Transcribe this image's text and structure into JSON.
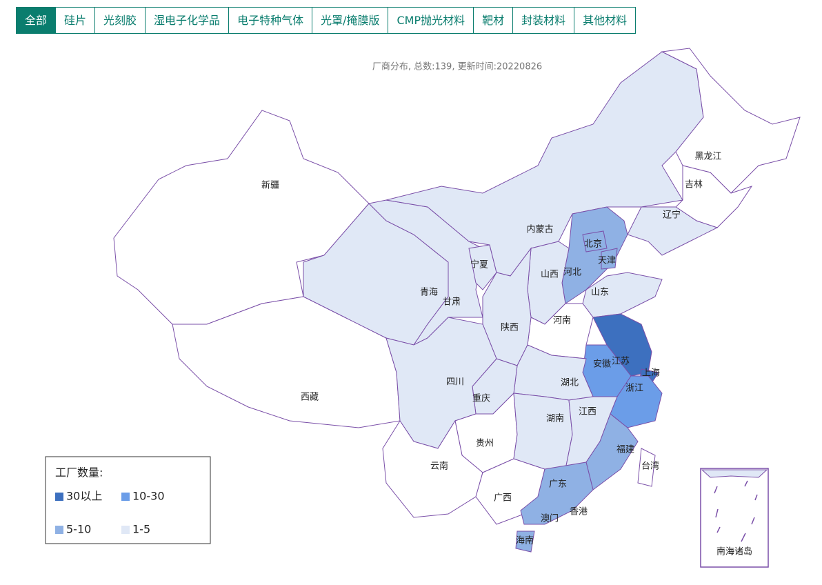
{
  "tabs": [
    "全部",
    "硅片",
    "光刻胶",
    "湿电子化学品",
    "电子特种气体",
    "光罩/掩膜版",
    "CMP抛光材料",
    "靶材",
    "封装材料",
    "其他材料"
  ],
  "map": {
    "subtitle": "厂商分布, 总数:139, 更新时间:20220826",
    "legend": {
      "title": "工厂数量:",
      "items": [
        {
          "label": "30以上",
          "color": "#3d70bf"
        },
        {
          "label": "10-30",
          "color": "#6b9de8"
        },
        {
          "label": "5-10",
          "color": "#8fb1e4"
        },
        {
          "label": "1-5",
          "color": "#e0e8f6"
        }
      ]
    },
    "provinces": [
      {
        "name": "新疆",
        "color": "#ffffff"
      },
      {
        "name": "西藏",
        "color": "#ffffff"
      },
      {
        "name": "青海",
        "color": "#e0e8f6"
      },
      {
        "name": "甘肃",
        "color": "#e0e8f6"
      },
      {
        "name": "宁夏",
        "color": "#e0e8f6"
      },
      {
        "name": "内蒙古",
        "color": "#e0e8f6"
      },
      {
        "name": "黑龙江",
        "color": "#ffffff"
      },
      {
        "name": "吉林",
        "color": "#ffffff"
      },
      {
        "name": "辽宁",
        "color": "#e0e8f6"
      },
      {
        "name": "河北",
        "color": "#8fb1e4"
      },
      {
        "name": "北京",
        "color": "#8fb1e4"
      },
      {
        "name": "天津",
        "color": "#8fb1e4"
      },
      {
        "name": "山西",
        "color": "#e0e8f6"
      },
      {
        "name": "山东",
        "color": "#e0e8f6"
      },
      {
        "name": "河南",
        "color": "#ffffff"
      },
      {
        "name": "陕西",
        "color": "#e0e8f6"
      },
      {
        "name": "江苏",
        "color": "#3d70bf"
      },
      {
        "name": "安徽",
        "color": "#6b9de8"
      },
      {
        "name": "上海",
        "color": "#3d70bf"
      },
      {
        "name": "浙江",
        "color": "#6b9de8"
      },
      {
        "name": "湖北",
        "color": "#e0e8f6"
      },
      {
        "name": "重庆",
        "color": "#e0e8f6"
      },
      {
        "name": "四川",
        "color": "#e0e8f6"
      },
      {
        "name": "贵州",
        "color": "#ffffff"
      },
      {
        "name": "云南",
        "color": "#ffffff"
      },
      {
        "name": "广西",
        "color": "#ffffff"
      },
      {
        "name": "湖南",
        "color": "#e0e8f6"
      },
      {
        "name": "江西",
        "color": "#e0e8f6"
      },
      {
        "name": "福建",
        "color": "#8fb1e4"
      },
      {
        "name": "广东",
        "color": "#8fb1e4"
      },
      {
        "name": "台湾",
        "color": "#ffffff"
      },
      {
        "name": "海南",
        "color": "#8fb1e4"
      }
    ],
    "labels": [
      "香港",
      "澳门"
    ],
    "inset": "南海诸岛"
  }
}
